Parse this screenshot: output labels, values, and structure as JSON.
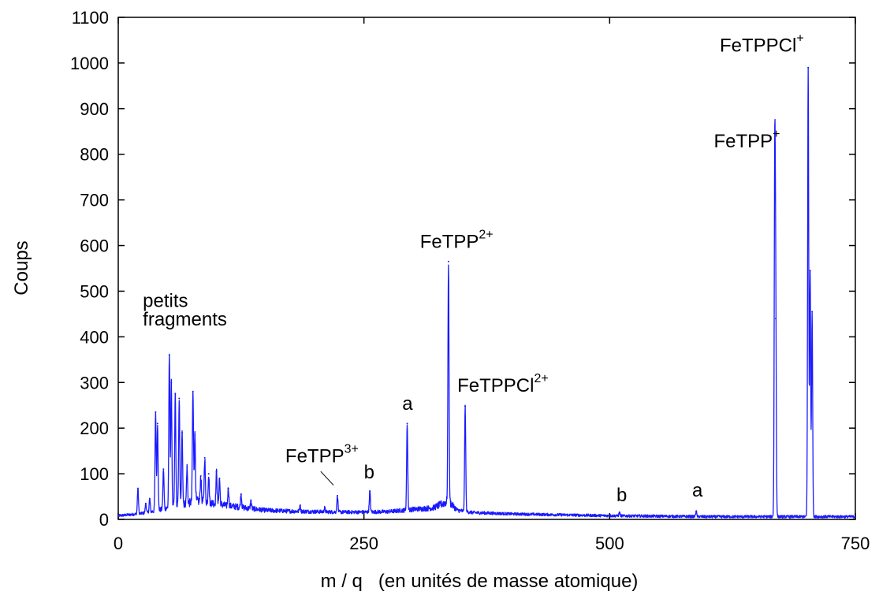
{
  "chart_data": {
    "type": "line",
    "title": "",
    "xlabel": "m / q   (en unités de masse atomique)",
    "ylabel": "Coups",
    "xlim": [
      0,
      750
    ],
    "ylim": [
      0,
      1100
    ],
    "xticks": [
      0,
      250,
      500,
      750
    ],
    "yticks": [
      0,
      100,
      200,
      300,
      400,
      500,
      600,
      700,
      800,
      900,
      1000,
      1100
    ],
    "grid": false,
    "line_color": "#1a1aff",
    "baseline": [
      [
        0,
        8
      ],
      [
        10,
        10
      ],
      [
        20,
        12
      ],
      [
        30,
        15
      ],
      [
        40,
        20
      ],
      [
        50,
        25
      ],
      [
        60,
        30
      ],
      [
        70,
        35
      ],
      [
        80,
        40
      ],
      [
        90,
        38
      ],
      [
        100,
        35
      ],
      [
        110,
        30
      ],
      [
        120,
        28
      ],
      [
        130,
        25
      ],
      [
        150,
        20
      ],
      [
        175,
        18
      ],
      [
        200,
        17
      ],
      [
        225,
        16
      ],
      [
        250,
        16
      ],
      [
        275,
        17
      ],
      [
        290,
        20
      ],
      [
        300,
        22
      ],
      [
        320,
        25
      ],
      [
        336,
        40
      ],
      [
        345,
        20
      ],
      [
        360,
        15
      ],
      [
        400,
        12
      ],
      [
        450,
        10
      ],
      [
        500,
        8
      ],
      [
        550,
        7
      ],
      [
        600,
        6
      ],
      [
        650,
        6
      ],
      [
        700,
        6
      ],
      [
        750,
        6
      ]
    ],
    "peaks": [
      {
        "x": 20,
        "y": 68
      },
      {
        "x": 28,
        "y": 35
      },
      {
        "x": 32,
        "y": 45
      },
      {
        "x": 38,
        "y": 235
      },
      {
        "x": 40,
        "y": 210
      },
      {
        "x": 46,
        "y": 110
      },
      {
        "x": 52,
        "y": 360
      },
      {
        "x": 54,
        "y": 300
      },
      {
        "x": 58,
        "y": 275
      },
      {
        "x": 62,
        "y": 265
      },
      {
        "x": 65,
        "y": 190
      },
      {
        "x": 70,
        "y": 115
      },
      {
        "x": 76,
        "y": 280
      },
      {
        "x": 78,
        "y": 185
      },
      {
        "x": 84,
        "y": 95
      },
      {
        "x": 88,
        "y": 135
      },
      {
        "x": 92,
        "y": 100
      },
      {
        "x": 100,
        "y": 105
      },
      {
        "x": 103,
        "y": 90
      },
      {
        "x": 112,
        "y": 68
      },
      {
        "x": 125,
        "y": 55
      },
      {
        "x": 135,
        "y": 40
      },
      {
        "x": 185,
        "y": 30
      },
      {
        "x": 210,
        "y": 25
      },
      {
        "x": 223,
        "y": 52
      },
      {
        "x": 256,
        "y": 62
      },
      {
        "x": 294,
        "y": 210
      },
      {
        "x": 336,
        "y": 565
      },
      {
        "x": 353,
        "y": 248
      },
      {
        "x": 510,
        "y": 15
      },
      {
        "x": 588,
        "y": 18
      },
      {
        "x": 668,
        "y": 782
      },
      {
        "x": 669,
        "y": 440
      },
      {
        "x": 702,
        "y": 990
      },
      {
        "x": 704,
        "y": 545
      },
      {
        "x": 706,
        "y": 455
      }
    ],
    "annotations": [
      {
        "base": "petits",
        "sup": "",
        "x": 25,
        "y": 465
      },
      {
        "base": "fragments",
        "sup": "",
        "x": 25,
        "y": 425
      },
      {
        "base": "FeTPP",
        "sup": "3+",
        "x": 170,
        "y": 125
      },
      {
        "base": "b",
        "sup": "",
        "x": 250,
        "y": 90
      },
      {
        "base": "a",
        "sup": "",
        "x": 289,
        "y": 240
      },
      {
        "base": "FeTPP",
        "sup": "2+",
        "x": 307,
        "y": 595
      },
      {
        "base": "FeTPPCl",
        "sup": "2+",
        "x": 345,
        "y": 280
      },
      {
        "base": "b",
        "sup": "",
        "x": 507,
        "y": 40
      },
      {
        "base": "a",
        "sup": "",
        "x": 584,
        "y": 50
      },
      {
        "base": "FeTPP",
        "sup": "+",
        "x": 606,
        "y": 815
      },
      {
        "base": "FeTPPCl",
        "sup": "+",
        "x": 612,
        "y": 1025
      }
    ],
    "pointer_line": {
      "from": [
        206,
        105
      ],
      "to": [
        219,
        75
      ]
    }
  }
}
